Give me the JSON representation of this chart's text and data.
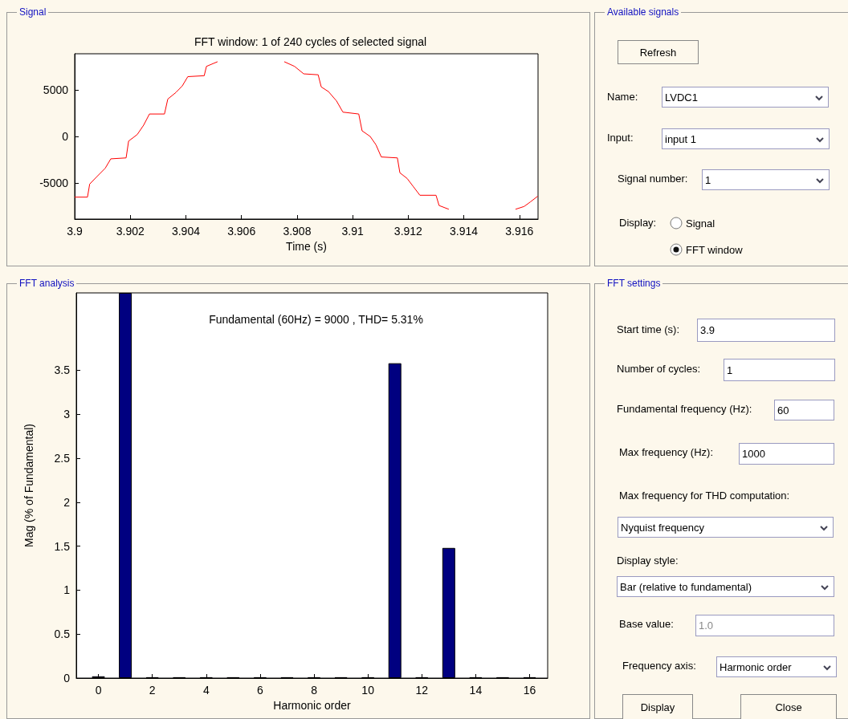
{
  "chart_data": [
    {
      "type": "line",
      "title": "FFT window: 1 of 240 cycles of selected signal",
      "xlabel": "Time (s)",
      "annotations": [
        "Signal"
      ],
      "color": "#ff0000",
      "x": [
        3.9,
        3.90046,
        3.90054,
        3.9008,
        3.9011,
        3.9013,
        3.90185,
        3.90194,
        3.90225,
        3.90248,
        3.90269,
        3.90323,
        3.90335,
        3.90364,
        3.90387,
        3.90407,
        3.90466,
        3.90474,
        3.90514,
        3.90546,
        3.90739,
        3.90754,
        3.90791,
        3.90824,
        3.90876,
        3.90887,
        3.90913,
        3.90942,
        3.90965,
        3.91022,
        3.91034,
        3.91063,
        3.91084,
        3.91103,
        3.91161,
        3.9117,
        3.91196,
        3.91219,
        3.91242,
        3.913,
        3.91311,
        3.91346,
        3.91377,
        3.91577,
        3.91586,
        3.91617,
        3.9164,
        3.91666
      ],
      "values": [
        -6500,
        -6500,
        -5100,
        -4300,
        -3400,
        -2400,
        -2300,
        -500,
        200,
        1200,
        2400,
        2400,
        4000,
        4700,
        5400,
        6400,
        6500,
        7500,
        8000,
        null,
        null,
        8000,
        7500,
        6700,
        6600,
        5300,
        4800,
        3800,
        2600,
        2400,
        600,
        0,
        -900,
        -2200,
        -2300,
        -3900,
        -4500,
        -5400,
        -6300,
        -6300,
        -7400,
        -7800,
        null,
        null,
        -7800,
        -7500,
        -7000,
        -6400
      ],
      "xlim": [
        3.9,
        3.91667
      ],
      "xticks": [
        3.9,
        3.902,
        3.904,
        3.906,
        3.908,
        3.91,
        3.912,
        3.914,
        3.916
      ],
      "ylim": [
        -8850,
        8850
      ],
      "yticks": [
        -5000,
        0,
        5000
      ]
    },
    {
      "type": "bar",
      "title": "Fundamental (60Hz) = 9000 , THD= 5.31%",
      "xlabel": "Harmonic order",
      "ylabel": "Mag (% of Fundamental)",
      "annotations": [
        "FFT analysis"
      ],
      "color": "#000080",
      "x": [
        0,
        1,
        2,
        3,
        4,
        5,
        6,
        7,
        8,
        9,
        10,
        11,
        12,
        13,
        14,
        15,
        16
      ],
      "values": [
        0.02,
        4.38,
        0.01,
        0.01,
        0.01,
        0.01,
        0.01,
        0.01,
        0.01,
        0.01,
        0.01,
        3.58,
        0.01,
        1.48,
        0.01,
        0.01,
        0.01
      ],
      "xlim": [
        -0.82,
        16.67
      ],
      "xticks": [
        0,
        2,
        4,
        6,
        8,
        10,
        12,
        14,
        16
      ],
      "ylim": [
        0,
        4.38
      ],
      "yticks": [
        0,
        0.5,
        1,
        1.5,
        2,
        2.5,
        3,
        3.5
      ]
    },
    {
      "type": "other",
      "title": "Available signals",
      "annotations": [
        "Refresh",
        "Name:",
        "LVDC1",
        "Input:",
        "input 1",
        "Signal number:",
        "1",
        "Display:",
        "Signal",
        "FFT window"
      ]
    },
    {
      "type": "other",
      "title": "FFT settings",
      "annotations": [
        "Start time (s):",
        "3.9",
        "Number of cycles:",
        "1",
        "Fundamental frequency (Hz):",
        "60",
        "Max frequency (Hz):",
        "1000",
        "Max frequency for THD computation:",
        "Nyquist frequency",
        "Display style:",
        "Bar (relative to fundamental)",
        "Base value:",
        "1.0",
        "Frequency axis:",
        "Harmonic order",
        "Display",
        "Close"
      ]
    }
  ]
}
